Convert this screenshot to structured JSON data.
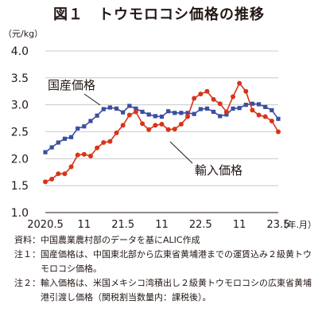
{
  "title": "図１　トウモロコシ価格の推移",
  "notes": [
    {
      "label": "資料：",
      "text": "中国農業農村部のデータを基にALIC作成"
    },
    {
      "label": "注１：",
      "text": "国産価格は、中国東北部から広東省黄埔港までの運賃込み２級黄トウモロコシ価格。"
    },
    {
      "label": "注２：",
      "text": "輸入価格は、米国メキシコ湾積出し２級黄トウモロコシの広東省黄埔港引渡し価格（関税割当数量内：課税後）。"
    }
  ],
  "chart_data": {
    "type": "line",
    "ylabel": "（元/kg）",
    "xlabel": "（年.月）",
    "ylim": [
      1.0,
      4.0
    ],
    "yticks": [
      "1.0",
      "1.5",
      "2.0",
      "2.5",
      "3.0",
      "3.5",
      "4.0"
    ],
    "x_tick_labels": [
      {
        "index": 0,
        "label": "2020.5"
      },
      {
        "index": 6,
        "label": "11"
      },
      {
        "index": 12,
        "label": "21.5"
      },
      {
        "index": 18,
        "label": "11"
      },
      {
        "index": 24,
        "label": "22.5"
      },
      {
        "index": 30,
        "label": "11"
      },
      {
        "index": 36,
        "label": "23.5"
      }
    ],
    "grid": true,
    "series": [
      {
        "name": "国産価格",
        "color": "#3b4fa0",
        "marker": "square",
        "values": [
          2.12,
          2.21,
          2.3,
          2.37,
          2.4,
          2.56,
          2.6,
          2.7,
          2.8,
          2.92,
          2.95,
          2.93,
          2.86,
          2.98,
          2.93,
          2.87,
          2.82,
          2.79,
          2.78,
          2.88,
          2.85,
          2.85,
          2.85,
          2.83,
          2.92,
          2.93,
          2.87,
          2.79,
          2.82,
          2.93,
          2.94,
          3.0,
          3.02,
          3.01,
          2.96,
          2.9,
          2.74
        ]
      },
      {
        "name": "輸入価格",
        "color": "#d8341a",
        "marker": "circle",
        "values": [
          1.57,
          1.62,
          1.72,
          1.72,
          1.85,
          2.07,
          2.08,
          2.05,
          2.2,
          2.3,
          2.32,
          2.48,
          2.62,
          2.81,
          2.87,
          2.65,
          2.54,
          2.62,
          2.64,
          2.54,
          2.55,
          2.64,
          2.78,
          3.12,
          3.2,
          3.25,
          3.1,
          3.02,
          2.87,
          3.15,
          3.4,
          3.25,
          2.9,
          2.81,
          2.78,
          2.7,
          2.5
        ]
      }
    ]
  }
}
